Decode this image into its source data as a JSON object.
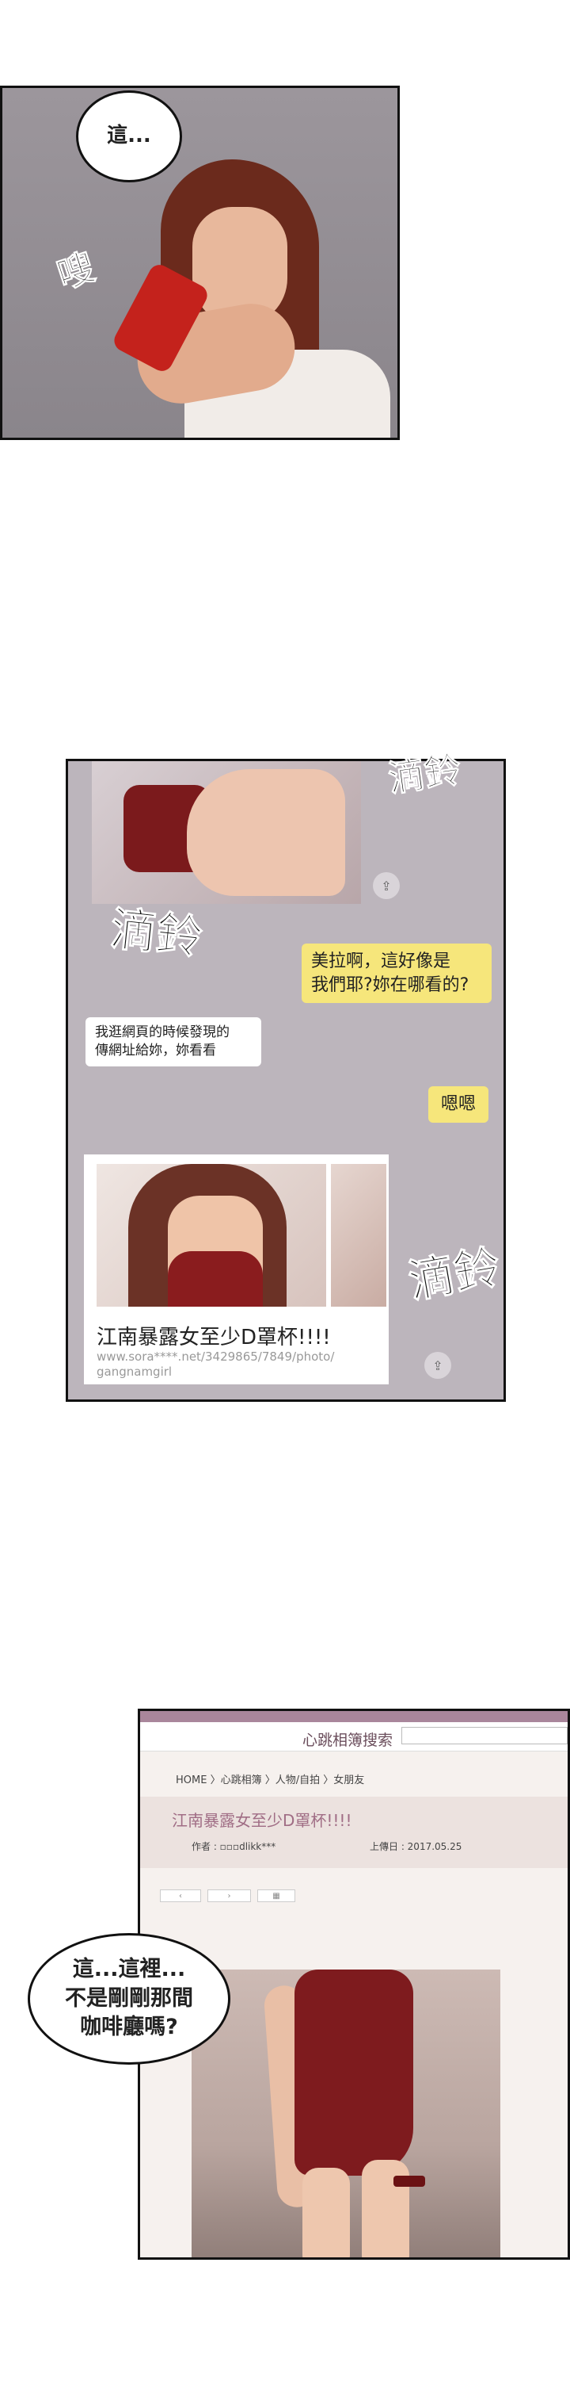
{
  "panel1": {
    "speech": "這...",
    "sfx": "嗖"
  },
  "panel2": {
    "sfx_top": "滴鈴",
    "sfx_mid": "滴鈴",
    "sfx_bottom": "滴鈴",
    "messages": [
      {
        "from": "me",
        "text_line1": "美拉啊，這好像是",
        "text_line2": "我們耶?妳在哪看的?"
      },
      {
        "from": "them",
        "text_line1": "我逛網頁的時候發現的",
        "text_line2": "傳網址給妳，妳看看"
      },
      {
        "from": "me",
        "text_line1": "嗯嗯",
        "text_line2": ""
      }
    ],
    "link_card": {
      "title": "江南暴露女至少D罩杯!!!!",
      "url_line1": "www.sora****.net/3429865/7849/photo/",
      "url_line2": "gangnamgirl"
    },
    "share_icon": "share-icon"
  },
  "panel3": {
    "site_title": "心跳相簿搜索",
    "breadcrumb": "HOME 〉心跳相簿 〉人物/自拍 〉女朋友",
    "post_title": "江南暴露女至少D罩杯!!!!",
    "author": "作者 : ▫▫▫dlikk***",
    "date": "上傳日 : 2017.05.25",
    "speech_line1": "這...這裡...",
    "speech_line2": "不是剛剛那間",
    "speech_line3": "咖啡廳嗎?"
  },
  "colors": {
    "chat_bg": "#bcb5bc",
    "my_bubble": "#f6e67b",
    "their_bubble": "#ffffff",
    "site_accent": "#a06d85"
  }
}
